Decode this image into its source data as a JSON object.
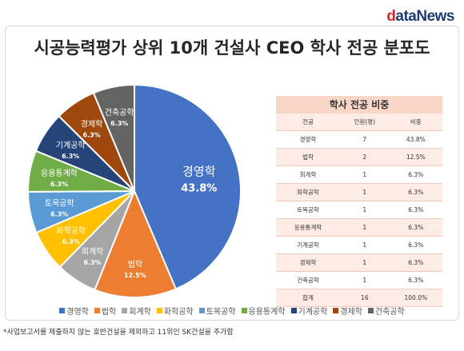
{
  "brand": {
    "logo_d": "d",
    "logo_rest": "ataNews"
  },
  "chart_data": {
    "type": "pie",
    "title": "시공능력평가 상위 10개 건설사 CEO 학사 전공 분포도",
    "slices": [
      {
        "label": "경영학",
        "value": 43.8,
        "pct_label": "43.8%",
        "color": "#4472c4"
      },
      {
        "label": "법학",
        "value": 12.5,
        "pct_label": "12.5%",
        "color": "#ed7d31"
      },
      {
        "label": "회계학",
        "value": 6.3,
        "pct_label": "6.3%",
        "color": "#a5a5a5"
      },
      {
        "label": "화학공학",
        "value": 6.3,
        "pct_label": "6.3%",
        "color": "#ffc000"
      },
      {
        "label": "토목공학",
        "value": 6.3,
        "pct_label": "6.3%",
        "color": "#5b9bd5"
      },
      {
        "label": "응용통계학",
        "value": 6.3,
        "pct_label": "6.3%",
        "color": "#70ad47"
      },
      {
        "label": "기계공학",
        "value": 6.3,
        "pct_label": "6.3%",
        "color": "#264478"
      },
      {
        "label": "경제학",
        "value": 6.3,
        "pct_label": "6.3%",
        "color": "#9e480e"
      },
      {
        "label": "건축공학",
        "value": 6.3,
        "pct_label": "6.3%",
        "color": "#636363"
      }
    ],
    "legend_position": "bottom"
  },
  "table": {
    "title": "학사 전공 비중",
    "headers": [
      "전공",
      "인원(명)",
      "비중"
    ],
    "rows": [
      [
        "경영학",
        "7",
        "43.8%"
      ],
      [
        "법학",
        "2",
        "12.5%"
      ],
      [
        "회계학",
        "1",
        "6.3%"
      ],
      [
        "화학공학",
        "1",
        "6.3%"
      ],
      [
        "토목공학",
        "1",
        "6.3%"
      ],
      [
        "응용통계학",
        "1",
        "6.3%"
      ],
      [
        "기계공학",
        "1",
        "6.3%"
      ],
      [
        "경제학",
        "1",
        "6.3%"
      ],
      [
        "건축공학",
        "1",
        "6.3%"
      ],
      [
        "합계",
        "16",
        "100.0%"
      ]
    ]
  },
  "footnote": "*사업보고서를 제출하지 않는 호반건설을 제외하고 11위인 SK건설을 추가함"
}
